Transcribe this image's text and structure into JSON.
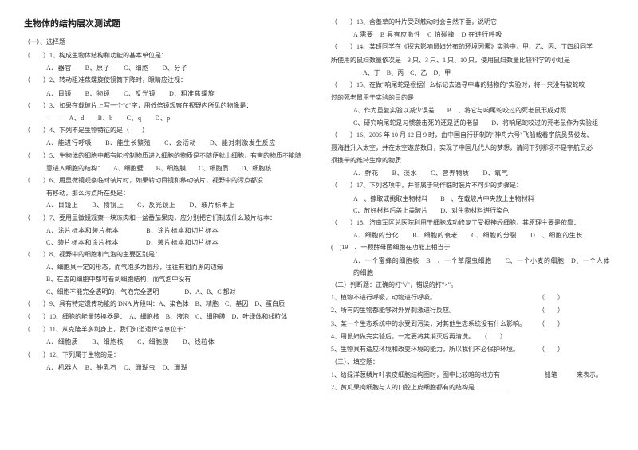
{
  "title": "生物体的结构层次测试题",
  "section1": "（一）、选择题",
  "col1": {
    "q1": "（　　）1、构成生物体结构和功能的基本单位是：",
    "q1o": "A、器官　　B、原子　　C、细胞　　D、分子",
    "q2": "（　　）2、转动粗准焦螺旋使镜筒下降时，眼睛应注视：",
    "q2o": "A、目镜　　B、物镜　　C、反光镜　　D、粗准焦螺旋",
    "q3": "（　　）3、如果在载玻片上写一个\"d\"字，用低倍镜观察在视野内所见的物像是：",
    "q3o": "A、d　　B、b　　C、q　　D、p",
    "q4": "（　　）4、下列不是生物特征的是（　　）",
    "q4o": "A、能进行呼吸　　B、能生长繁殖　　C、会活动　　D、能对刺激发生反应",
    "q5": "（　　）5、生物体的细胞中都有能控制物质进入细胞的物质是不随便就出细胞，有害的物质不能随",
    "q5b": "意进入细胞的结构：　　A、细胞壁　　B、细胞膜　　C、细胞质　　D、细胞核",
    "q6": "（　　）6、用显微镜观察临时装片时，如果转动目镜和移动装片，视野中的污点都没",
    "q6b": "有移动，那么污点所在处是：",
    "q6o": "A、目镜上　　B、物镜上　　C、反光镜上　　D、玻片标本上",
    "q7": "（　　）7、要用显微镜观察一块冻肉和一盆番茄果肉，应分别把它们制成什么玻片标本：",
    "q7o1": "A、涂片标本和装片标本　　　　B、涂片标本和切片标本",
    "q7o2": "C、装片标本和涂片标本　　　　D、装片标本和切片标本",
    "q8": "（　　）8、视野中的细胞和气泡的主要区别是：",
    "q8a": "A、细胞具一定的形态，而气泡多为圆形，往往有粗而黑的边缘",
    "q8b": "B、在盖的细胞中都可看到细胞结构，而气泡中没有",
    "q8c": "C、细胞不能完全透明的，气泡完全透明　　　　D、A、B、C 都对",
    "q9": "（　　）9、具有特定遗传功能的 DNA 片段叫：A、染色体　B、精胞　C、基因　D、蛋白质",
    "q10": "（　　）10、细胞的能量转换器是：　A、细胞核　B、液泡　C、细胞膜　D、叶绿体和线粒体",
    "q11": "（　　）11、从克隆羊多利身上，我们知道遗传信息位于：",
    "q11o": "A、细胞质　　B、细胞核　　C、细胞膜　　D、线粒体",
    "q12": "（　　）12、下列属于生物的是：",
    "q12o": "A、机器人　B、钟乳石　C、珊瑚虫　D、珊瑚"
  },
  "col2": {
    "q13": "（　　）13、含羞草的叶片受到触动时会自然下垂，说明它",
    "q13o": "A 需要　B 具有应激性　C 怕碰撞　D 在进行呼吸",
    "q14": "（　　）14、某班同学在《探究影响鼠妇分布的环境因素》实验中，甲、乙、丙、丁四组同学",
    "q14b": "所使用的鼠妇数量依次是　3 只、3 只、1 只、10 只，使用鼠妇数量比较科学的小组是",
    "q14o": "A、丁　B、丙　C、乙　D、甲",
    "q15": "（　　）15、在做\"响尾蛇是根据什么标记去追寻中毒的猎物的\"实验时，将一只没有被蛇咬",
    "q15b": "过的死老鼠用于实验的目的是",
    "q15oa": "A、作为重复实验以减少误差　　B　、将它与响尾蛇咬过的死老鼠形成对照",
    "q15oc": "C、研究响尾蛇是习惯袭击死的还是活的老鼠　　D、将响尾蛇咬过的死老鼠作为实验组",
    "q16": "（　　）16、2005 年 10 月 12 日 9 时，由中国自行研制的\"神舟六号\"飞船载着宇航员费俊龙、",
    "q16b": "聂海胜升入太空，并在太空遨游数日，实现了中国几代人的梦想，请问下列哪项不是宇航员必",
    "q16c": "须携带的维持生命的物质",
    "q16o": "A、鲜花　　B、淡水　　C、营养物质　　D、氧气",
    "q17": "（　　）17、下列各项中，并非属于制作临时装片不可少的步骤是：",
    "q17oa": "A　、擦取或挑取生物材料　　B　、在载玻片中央放上生物材料",
    "q17oc": "C、放好材料后盖上盖玻片　　D、对生物材料进行染色",
    "q18": "（　　）18、济南军区总医院利用干细胞成功修复了受损神经细胞，其原理主要是依靠：",
    "q18o": "A、细胞的分化　　B、细胞的衰老　　C、细胞的分裂　　D　、细胞的生长",
    "q19": "(　)19　、一颗酵母菌细胞在功能上相当于",
    "q19o": "A、一个蜜蜂的细胞核　B　、一个草履虫细胞　　C、一个小麦的细胞　D、一个人体的细胞",
    "sec2": "（二）判断题：正确的打\"√\"，错误的打\"×\"。",
    "j1": "1、植物不进行呼吸，动物进行呼吸。　　　　　　　　　　　　　　　　　（　　）",
    "j2": "2、所有的生物都能够对外界刺激进行反应。　　　　　　　　　　　　　　（　　）",
    "j3": "3、某一个生态系统中的水受到污染，对其他生态系统没有什么影响。　　　（　　）",
    "j4": "4、用鼠妇做完实验后，一定要将其消灭后再清洗。　　（　　）",
    "j5": "5、生物具有适应环境和改变环境的能力，所以我们不必保护环境。　　　　（　　）",
    "sec3": "（三）、填空题：",
    "f1": "1、给绿洋葱鳞片叶表皮细胞结构图时，图中比较暗的地方有　　　　　　　铅笔　　　来表示。",
    "f2": "2、黄瓜果肉细胞与人的口腔上皮细胞都有的结构是"
  }
}
